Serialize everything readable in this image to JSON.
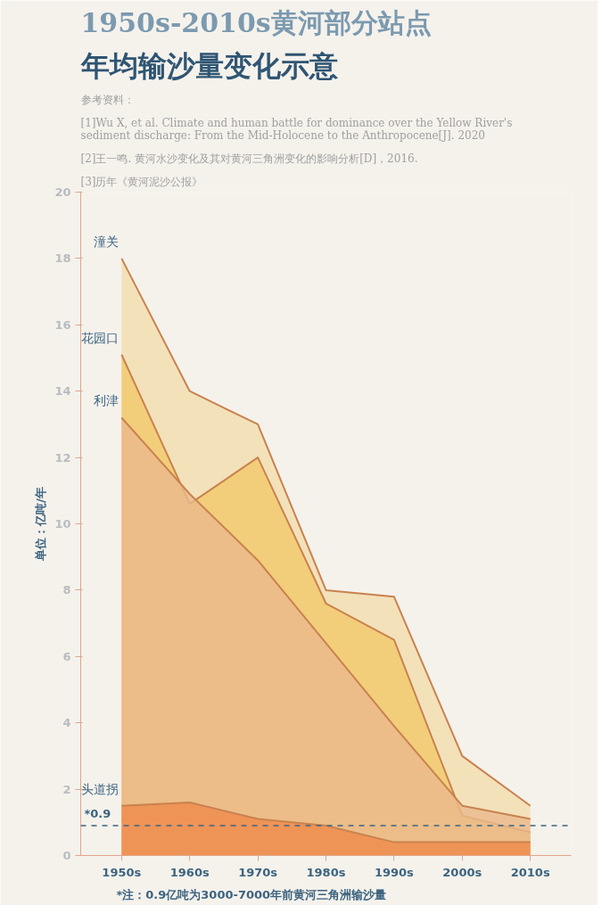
{
  "chart_data": {
    "type": "area",
    "title": "1950s-2010s黄河部分站点",
    "subtitle": "年均输沙量变化示意",
    "ylabel": "单位：亿吨/年",
    "categories": [
      "1950s",
      "1960s",
      "1970s",
      "1980s",
      "1990s",
      "2000s",
      "2010s"
    ],
    "series": [
      {
        "name": "潼关",
        "color": "#f2dcae",
        "values": [
          18.0,
          14.0,
          13.0,
          8.0,
          7.8,
          3.0,
          1.5
        ]
      },
      {
        "name": "花园口",
        "color": "#f2c96a",
        "values": [
          15.1,
          10.6,
          12.0,
          7.6,
          6.5,
          1.2,
          0.7
        ]
      },
      {
        "name": "利津",
        "color": "#eab98c",
        "values": [
          13.2,
          10.9,
          8.9,
          6.4,
          3.9,
          1.5,
          1.1
        ]
      },
      {
        "name": "头道拐",
        "color": "#f08a4b",
        "values": [
          1.5,
          1.6,
          1.1,
          0.9,
          0.4,
          0.4,
          0.4
        ]
      }
    ],
    "ylim": [
      0,
      20
    ],
    "yticks": [
      0,
      2,
      4,
      6,
      8,
      10,
      12,
      14,
      16,
      18,
      20
    ],
    "ref_lines": [
      {
        "axis": "y",
        "value": 0.9,
        "label": "*0.9",
        "color": "#3d6480",
        "line_style": "dashed"
      }
    ],
    "annotations": [
      "参考资料：",
      "[1]Wu X, et al. Climate and human battle for dominance over the Yellow River's sediment discharge: From the Mid-Holocene to the Anthropocene[J]. 2020",
      "[2]王一鸣. 黄河水沙变化及其对黄河三角洲变化的影响分析[D]，2016.",
      "[3]历年《黄河泥沙公报》",
      "*注：0.9亿吨为3000-7000年前黄河三角洲输沙量"
    ],
    "grid": false
  }
}
